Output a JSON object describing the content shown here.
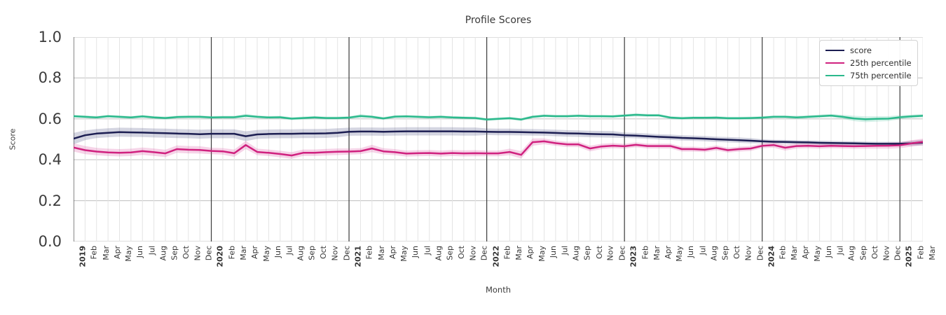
{
  "title": "Profile Scores",
  "axes": {
    "xlabel": "Month",
    "ylabel": "Score",
    "yticks": [
      "0.0",
      "0.2",
      "0.4",
      "0.6",
      "0.8",
      "1.0"
    ],
    "ylim": [
      0.0,
      1.0
    ]
  },
  "colors": {
    "score_line": "#1c1e52",
    "p25_line": "#d0217f",
    "p75_line": "#2bb98c",
    "score_band": "rgba(60,65,120,0.22)",
    "p25_band": "rgba(214,60,150,0.22)",
    "p75_band": "rgba(60,190,150,0.22)",
    "grid_h": "#c9c9c9",
    "grid_month": "#e4e4e4",
    "grid_year": "#3b3b3b"
  },
  "chart_data": {
    "type": "line",
    "title": "Profile Scores",
    "xlabel": "Month",
    "ylabel": "Score",
    "ylim": [
      0.0,
      1.0
    ],
    "grid": true,
    "legend_position": "upper right",
    "x_labels": [
      "2019",
      "Feb",
      "Mar",
      "Apr",
      "May",
      "Jun",
      "Jul",
      "Aug",
      "Sep",
      "Oct",
      "Nov",
      "Dec",
      "2020",
      "Feb",
      "Mar",
      "Apr",
      "May",
      "Jun",
      "Jul",
      "Aug",
      "Sep",
      "Oct",
      "Nov",
      "Dec",
      "2021",
      "Feb",
      "Mar",
      "Apr",
      "May",
      "Jun",
      "Jul",
      "Aug",
      "Sep",
      "Oct",
      "Nov",
      "Dec",
      "2022",
      "Feb",
      "Mar",
      "Apr",
      "May",
      "Jun",
      "Jul",
      "Aug",
      "Sep",
      "Oct",
      "Nov",
      "Dec",
      "2023",
      "Feb",
      "Mar",
      "Apr",
      "May",
      "Jun",
      "Jul",
      "Aug",
      "Sep",
      "Oct",
      "Nov",
      "Dec",
      "2024",
      "Feb",
      "Mar",
      "Apr",
      "May",
      "Jun",
      "Jul",
      "Aug",
      "Sep",
      "Oct",
      "Nov",
      "Dec",
      "2025",
      "Feb",
      "Mar"
    ],
    "year_tick_indices": [
      0,
      12,
      24,
      36,
      48,
      60,
      72
    ],
    "series": [
      {
        "name": "score",
        "color": "#1c1e52",
        "band_color": "rgba(60,65,120,0.22)",
        "values": [
          0.503,
          0.52,
          0.528,
          0.532,
          0.535,
          0.534,
          0.533,
          0.531,
          0.53,
          0.528,
          0.527,
          0.525,
          0.527,
          0.527,
          0.527,
          0.515,
          0.524,
          0.526,
          0.527,
          0.527,
          0.528,
          0.528,
          0.529,
          0.532,
          0.537,
          0.538,
          0.538,
          0.537,
          0.538,
          0.539,
          0.539,
          0.539,
          0.539,
          0.539,
          0.538,
          0.538,
          0.537,
          0.536,
          0.536,
          0.535,
          0.534,
          0.533,
          0.531,
          0.529,
          0.528,
          0.526,
          0.525,
          0.524,
          0.52,
          0.518,
          0.515,
          0.512,
          0.51,
          0.507,
          0.505,
          0.503,
          0.5,
          0.498,
          0.496,
          0.493,
          0.49,
          0.488,
          0.487,
          0.486,
          0.485,
          0.483,
          0.482,
          0.481,
          0.48,
          0.479,
          0.478,
          0.478,
          0.478,
          0.48,
          0.484
        ],
        "band": [
          0.028,
          0.024,
          0.022,
          0.022,
          0.022,
          0.022,
          0.022,
          0.022,
          0.022,
          0.022,
          0.022,
          0.022,
          0.022,
          0.022,
          0.022,
          0.024,
          0.022,
          0.022,
          0.022,
          0.022,
          0.022,
          0.022,
          0.022,
          0.022,
          0.02,
          0.02,
          0.02,
          0.02,
          0.02,
          0.02,
          0.02,
          0.02,
          0.02,
          0.02,
          0.02,
          0.02,
          0.016,
          0.016,
          0.016,
          0.016,
          0.016,
          0.016,
          0.016,
          0.016,
          0.016,
          0.016,
          0.016,
          0.016,
          0.013,
          0.013,
          0.013,
          0.013,
          0.013,
          0.013,
          0.013,
          0.013,
          0.013,
          0.013,
          0.013,
          0.013,
          0.01,
          0.01,
          0.01,
          0.01,
          0.01,
          0.01,
          0.01,
          0.01,
          0.01,
          0.01,
          0.01,
          0.01,
          0.01,
          0.012,
          0.014
        ]
      },
      {
        "name": "25th percentile",
        "color": "#d0217f",
        "band_color": "rgba(214,60,150,0.22)",
        "values": [
          0.46,
          0.447,
          0.44,
          0.436,
          0.434,
          0.436,
          0.442,
          0.437,
          0.431,
          0.452,
          0.449,
          0.448,
          0.443,
          0.441,
          0.432,
          0.472,
          0.438,
          0.434,
          0.428,
          0.421,
          0.434,
          0.434,
          0.437,
          0.439,
          0.44,
          0.442,
          0.455,
          0.441,
          0.437,
          0.43,
          0.432,
          0.433,
          0.43,
          0.433,
          0.431,
          0.432,
          0.431,
          0.431,
          0.438,
          0.424,
          0.486,
          0.49,
          0.481,
          0.475,
          0.475,
          0.455,
          0.465,
          0.469,
          0.466,
          0.473,
          0.467,
          0.467,
          0.467,
          0.452,
          0.452,
          0.449,
          0.458,
          0.447,
          0.452,
          0.455,
          0.468,
          0.472,
          0.459,
          0.467,
          0.468,
          0.466,
          0.468,
          0.467,
          0.466,
          0.467,
          0.468,
          0.469,
          0.471,
          0.48,
          0.487
        ],
        "band": [
          0.02,
          0.02,
          0.018,
          0.018,
          0.018,
          0.018,
          0.018,
          0.018,
          0.018,
          0.018,
          0.018,
          0.018,
          0.016,
          0.016,
          0.018,
          0.02,
          0.016,
          0.016,
          0.016,
          0.016,
          0.016,
          0.016,
          0.016,
          0.016,
          0.015,
          0.015,
          0.018,
          0.015,
          0.015,
          0.015,
          0.015,
          0.015,
          0.015,
          0.015,
          0.015,
          0.015,
          0.014,
          0.014,
          0.016,
          0.018,
          0.018,
          0.014,
          0.013,
          0.013,
          0.013,
          0.014,
          0.013,
          0.013,
          0.012,
          0.012,
          0.012,
          0.012,
          0.012,
          0.012,
          0.012,
          0.012,
          0.012,
          0.012,
          0.012,
          0.012,
          0.012,
          0.013,
          0.014,
          0.012,
          0.012,
          0.012,
          0.012,
          0.012,
          0.012,
          0.013,
          0.014,
          0.015,
          0.015,
          0.016,
          0.016
        ]
      },
      {
        "name": "75th percentile",
        "color": "#2bb98c",
        "band_color": "rgba(60,190,150,0.22)",
        "values": [
          0.613,
          0.61,
          0.607,
          0.613,
          0.61,
          0.607,
          0.612,
          0.607,
          0.604,
          0.609,
          0.61,
          0.61,
          0.607,
          0.608,
          0.608,
          0.615,
          0.61,
          0.607,
          0.608,
          0.601,
          0.604,
          0.607,
          0.604,
          0.604,
          0.606,
          0.614,
          0.61,
          0.602,
          0.611,
          0.612,
          0.61,
          0.608,
          0.61,
          0.607,
          0.605,
          0.604,
          0.597,
          0.6,
          0.603,
          0.597,
          0.61,
          0.615,
          0.613,
          0.613,
          0.615,
          0.613,
          0.613,
          0.612,
          0.616,
          0.62,
          0.617,
          0.617,
          0.606,
          0.603,
          0.605,
          0.605,
          0.606,
          0.603,
          0.603,
          0.604,
          0.606,
          0.61,
          0.61,
          0.607,
          0.61,
          0.613,
          0.616,
          0.61,
          0.602,
          0.598,
          0.6,
          0.601,
          0.608,
          0.612,
          0.615
        ],
        "band": [
          0.007,
          0.007,
          0.007,
          0.007,
          0.007,
          0.007,
          0.007,
          0.007,
          0.007,
          0.007,
          0.007,
          0.007,
          0.007,
          0.007,
          0.007,
          0.009,
          0.007,
          0.007,
          0.007,
          0.007,
          0.007,
          0.007,
          0.007,
          0.007,
          0.007,
          0.009,
          0.007,
          0.007,
          0.007,
          0.007,
          0.007,
          0.007,
          0.007,
          0.007,
          0.007,
          0.007,
          0.007,
          0.007,
          0.007,
          0.007,
          0.007,
          0.007,
          0.007,
          0.007,
          0.007,
          0.007,
          0.007,
          0.007,
          0.007,
          0.008,
          0.007,
          0.007,
          0.007,
          0.007,
          0.007,
          0.007,
          0.007,
          0.007,
          0.007,
          0.007,
          0.007,
          0.007,
          0.007,
          0.008,
          0.008,
          0.008,
          0.008,
          0.01,
          0.013,
          0.014,
          0.013,
          0.012,
          0.01,
          0.009,
          0.008
        ]
      }
    ]
  }
}
